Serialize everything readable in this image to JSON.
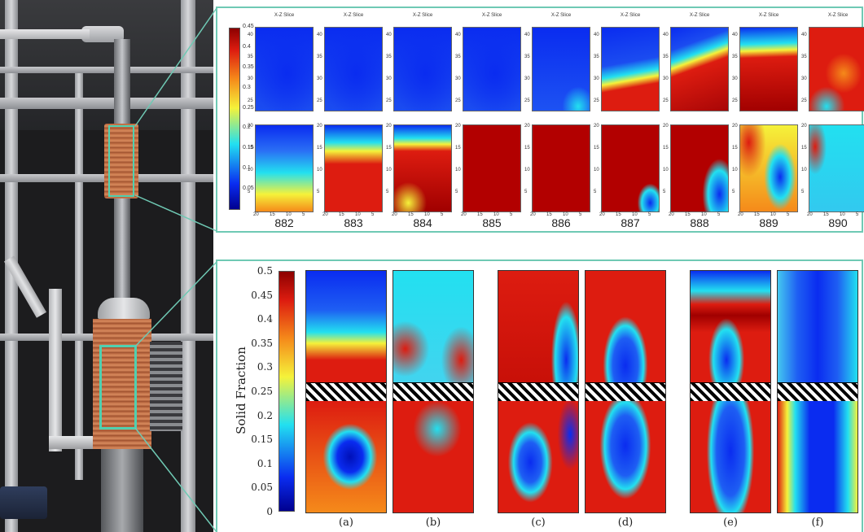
{
  "top_figure": {
    "slice_title": "X-Z Slice",
    "y_ticks_top": [
      "40",
      "35",
      "30",
      "25"
    ],
    "y_ticks_bottom": [
      "20",
      "15",
      "10",
      "5"
    ],
    "x_ticks": [
      "20",
      "15",
      "10",
      "5"
    ],
    "colorbar_ticks": [
      "0.45",
      "0.4",
      "0.35",
      "0.3",
      "0.25",
      "0.2",
      "0.15",
      "0.1",
      "0.05"
    ],
    "frames": [
      {
        "label": "882",
        "top": "low",
        "bottom": "low_yellow"
      },
      {
        "label": "883",
        "top": "low",
        "bottom": "red_lower"
      },
      {
        "label": "884",
        "top": "low",
        "bottom": "red_mostly"
      },
      {
        "label": "885",
        "top": "low",
        "bottom": "red_full"
      },
      {
        "label": "886",
        "top": "low_cyan_corner",
        "bottom": "red_full"
      },
      {
        "label": "887",
        "top": "red_band_low",
        "bottom": "red_blue_corner"
      },
      {
        "label": "888",
        "top": "red_diagonal",
        "bottom": "red_blue_right"
      },
      {
        "label": "889",
        "top": "red_lower_big",
        "bottom": "mixed_blue"
      },
      {
        "label": "890",
        "top": "red_cyan_mix",
        "bottom": "cyan_red_left"
      }
    ]
  },
  "bottom_figure": {
    "y_axis_label": "Solid Fraction",
    "y_ticks": [
      "0.5",
      "0.45",
      "0.4",
      "0.35",
      "0.3",
      "0.25",
      "0.2",
      "0.15",
      "0.1",
      "0.05",
      "0"
    ],
    "panels": [
      {
        "label": "(a)",
        "pattern": "a"
      },
      {
        "label": "(b)",
        "pattern": "b"
      },
      {
        "label": "(c)",
        "pattern": "c"
      },
      {
        "label": "(d)",
        "pattern": "d"
      },
      {
        "label": "(e)",
        "pattern": "e"
      },
      {
        "label": "(f)",
        "pattern": "f"
      }
    ]
  },
  "colors": {
    "panel_border": "#6fc9b4",
    "jet_dark_blue": "#00008f",
    "jet_blue": "#0a2cf0",
    "jet_cyan": "#22e0f0",
    "jet_yellow": "#f5f23a",
    "jet_orange": "#f58a1a",
    "jet_red": "#dd1c10",
    "jet_dark_red": "#8c0000"
  }
}
